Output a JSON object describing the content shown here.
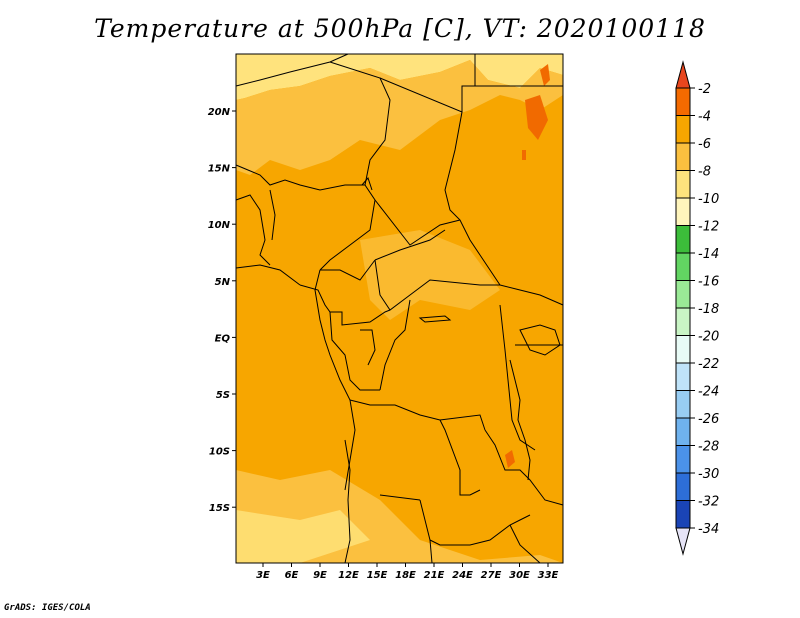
{
  "title": "Temperature at 500hPa [C], VT: 2020100118",
  "credit": "GrADS: IGES/COLA",
  "map": {
    "region": "Central Africa",
    "lon_ticks": [
      "3E",
      "6E",
      "9E",
      "12E",
      "15E",
      "18E",
      "21E",
      "24E",
      "27E",
      "30E",
      "33E"
    ],
    "lat_ticks": [
      "20N",
      "15N",
      "10N",
      "5N",
      "EQ",
      "5S",
      "10S",
      "15S"
    ],
    "regions": [
      {
        "name": "background-field",
        "color": "#f7a600"
      },
      {
        "name": "north-plateau",
        "color": "#ffe37d"
      },
      {
        "name": "sahel-band",
        "color": "#fbc03f"
      },
      {
        "name": "southern-cool-patch",
        "color": "#fbc03f"
      },
      {
        "name": "east-warm-spots",
        "color": "#f16a00"
      }
    ]
  },
  "colorbar": {
    "labels": [
      "-2",
      "-4",
      "-6",
      "-8",
      "-10",
      "-12",
      "-14",
      "-16",
      "-18",
      "-20",
      "-22",
      "-24",
      "-26",
      "-28",
      "-30",
      "-32",
      "-34"
    ],
    "colors": [
      "#ef3c12",
      "#f46a00",
      "#f7a600",
      "#fbc03f",
      "#fde37d",
      "#fff5bc",
      "#3cbd3a",
      "#62d562",
      "#9aea96",
      "#c9f5c5",
      "#e8fbf6",
      "#bfe3f9",
      "#98cdf3",
      "#6fb2ee",
      "#4b92e9",
      "#2d6ed8",
      "#1a44b6",
      "#0a1b6f"
    ],
    "top_arrow_color": "#e8461e",
    "bottom_arrow_color": "#e6e4f7"
  }
}
